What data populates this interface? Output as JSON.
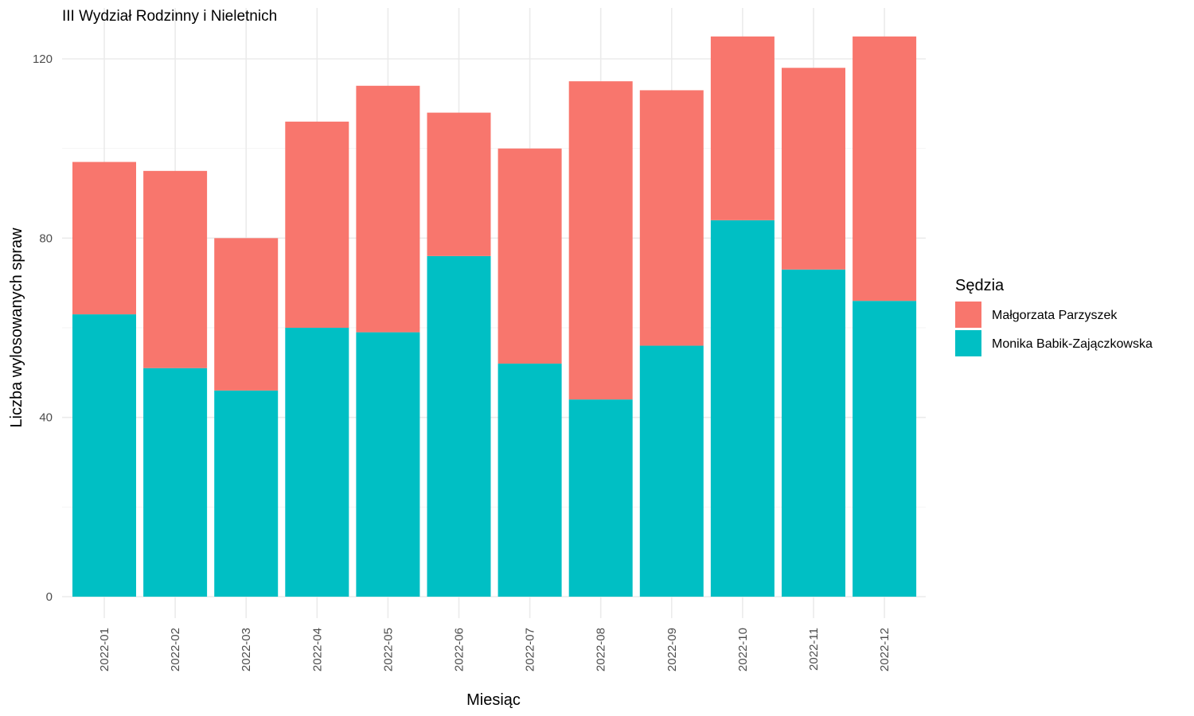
{
  "chart_data": {
    "type": "bar",
    "stacked": true,
    "title": "III Wydział Rodzinny i Nieletnich",
    "xlabel": "Miesiąc",
    "ylabel": "Liczba wylosowanych spraw",
    "ylim": [
      0,
      128
    ],
    "yticks": [
      0,
      40,
      80,
      120
    ],
    "grid": true,
    "legend_position": "right",
    "legend_title": "Sędzia",
    "categories": [
      "2022-01",
      "2022-02",
      "2022-03",
      "2022-04",
      "2022-05",
      "2022-06",
      "2022-07",
      "2022-08",
      "2022-09",
      "2022-10",
      "2022-11",
      "2022-12"
    ],
    "series": [
      {
        "name": "Monika Babik-Zajączkowska",
        "color": "#00BFC4",
        "values": [
          63,
          51,
          46,
          60,
          59,
          76,
          52,
          44,
          56,
          84,
          73,
          66
        ]
      },
      {
        "name": "Małgorzata Parzyszek",
        "color": "#F8766D",
        "values": [
          34,
          44,
          34,
          46,
          55,
          32,
          48,
          71,
          57,
          41,
          45,
          59
        ]
      }
    ],
    "legend_order": [
      "Małgorzata Parzyszek",
      "Monika Babik-Zajączkowska"
    ]
  }
}
